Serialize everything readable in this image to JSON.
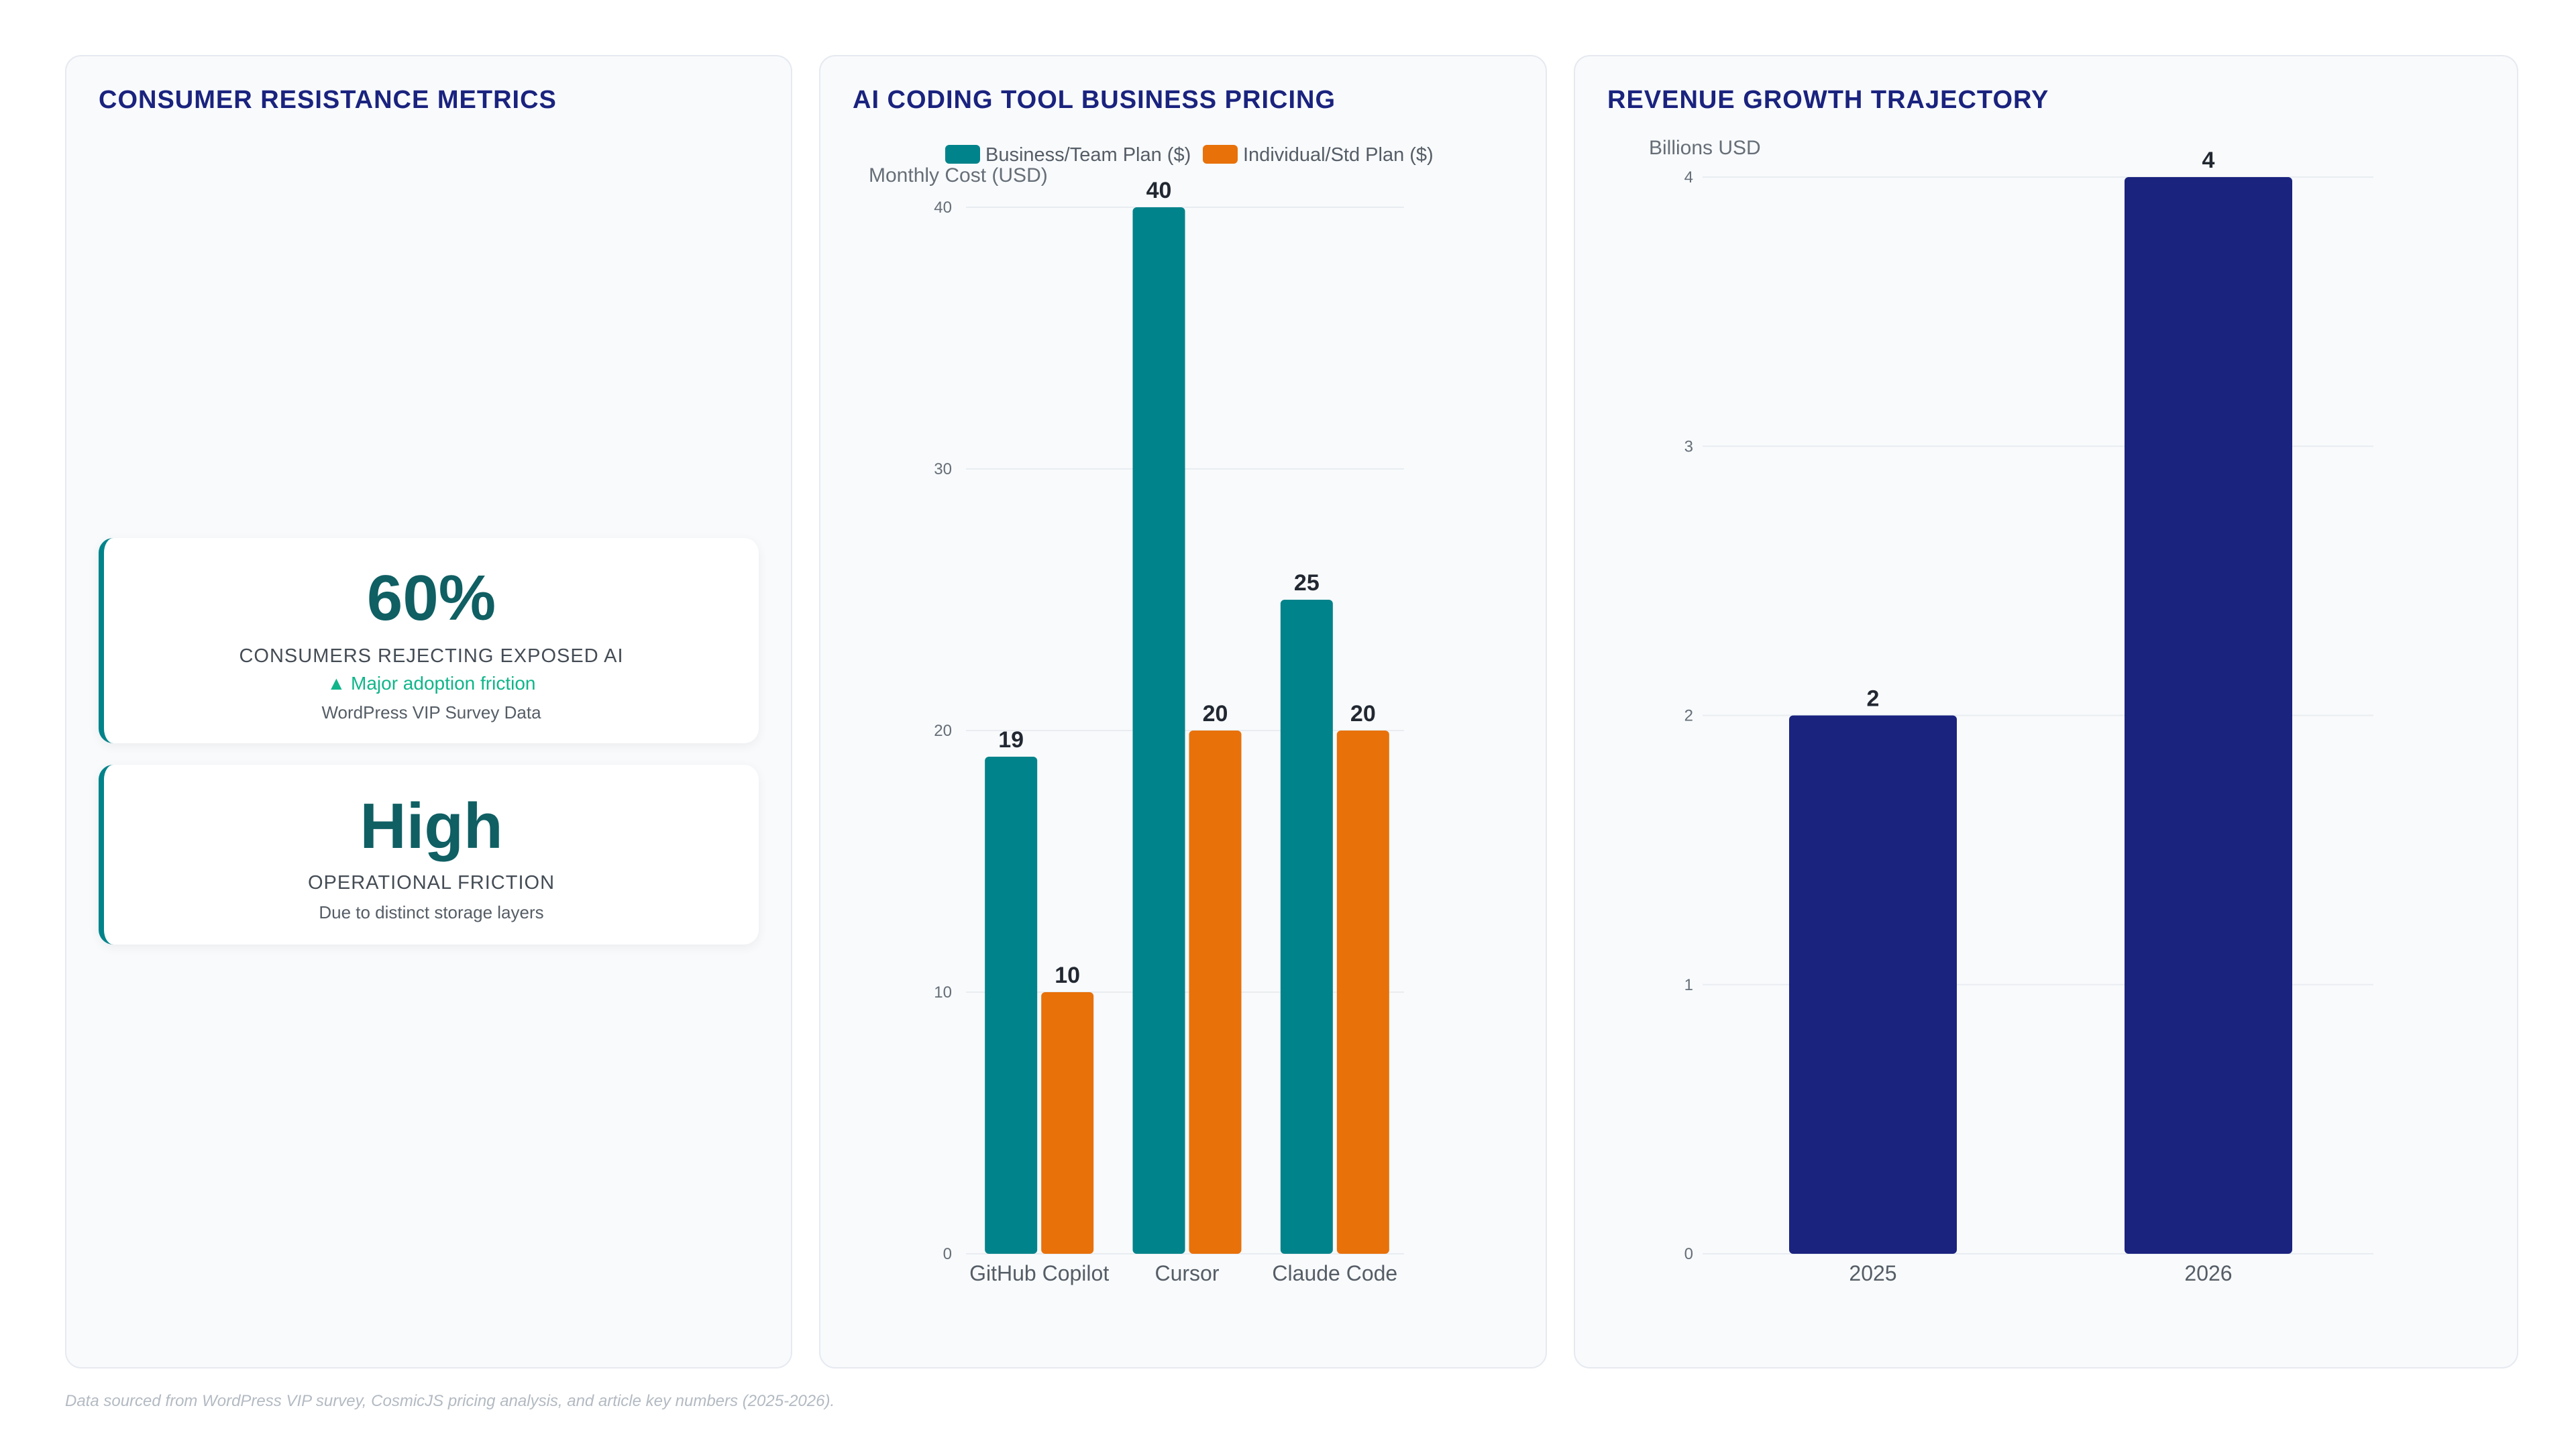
{
  "metrics_panel": {
    "title": "CONSUMER RESISTANCE METRICS",
    "cards": [
      {
        "value": "60%",
        "label": "CONSUMERS REJECTING EXPOSED AI",
        "trend_icon": "triangle-up-icon",
        "trend": "Major adoption friction",
        "source": "WordPress VIP Survey Data"
      },
      {
        "value": "High",
        "label": "OPERATIONAL FRICTION",
        "source": "Due to distinct storage layers"
      }
    ]
  },
  "chart_data": [
    {
      "type": "bar",
      "title": "AI CODING TOOL BUSINESS PRICING",
      "xlabel": "",
      "ylabel": "Monthly Cost (USD)",
      "categories": [
        "GitHub Copilot",
        "Cursor",
        "Claude Code"
      ],
      "series": [
        {
          "name": "Business/Team Plan ($)",
          "values": [
            19,
            40,
            25
          ],
          "color": "#00838a"
        },
        {
          "name": "Individual/Std Plan ($)",
          "values": [
            10,
            20,
            20
          ],
          "color": "#e8710a"
        }
      ],
      "ylim": [
        0,
        40
      ],
      "yticks": [
        0,
        10,
        20,
        30,
        40
      ],
      "legend": "top",
      "grid": true,
      "data_labels": true
    },
    {
      "type": "bar",
      "title": "REVENUE GROWTH TRAJECTORY",
      "xlabel": "",
      "ylabel": "Billions USD",
      "categories": [
        "2025",
        "2026"
      ],
      "series": [
        {
          "values": [
            2,
            4
          ],
          "color": "#1a237e"
        }
      ],
      "ylim": [
        0,
        4
      ],
      "yticks": [
        0,
        1,
        2,
        3,
        4
      ],
      "legend": "none",
      "grid": true,
      "data_labels": true
    }
  ],
  "footer": {
    "note": "Data sourced from WordPress VIP survey, CosmicJS pricing analysis, and article key numbers (2025-2026)."
  }
}
